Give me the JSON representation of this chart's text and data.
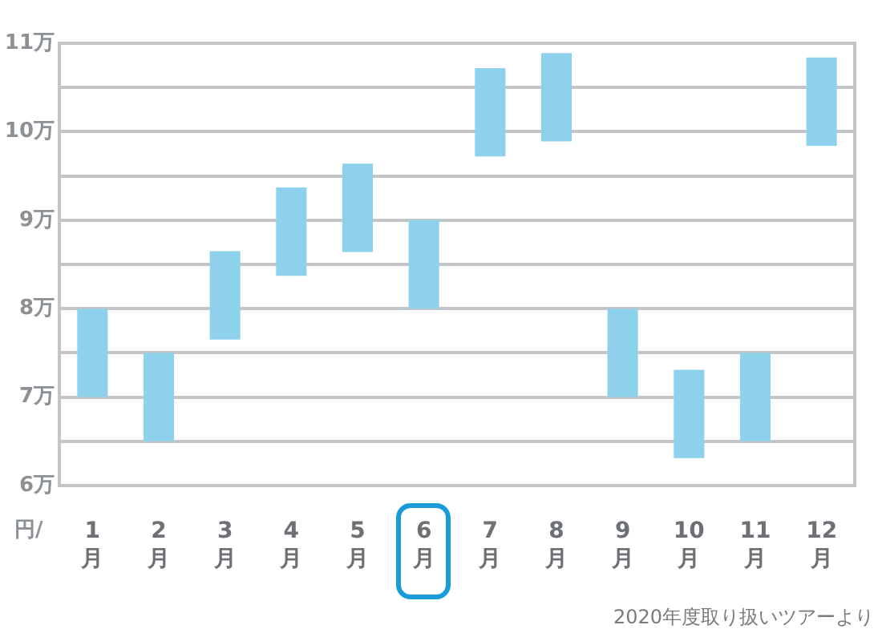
{
  "chart_data": {
    "type": "bar",
    "categories": [
      "1月",
      "2月",
      "3月",
      "4月",
      "5月",
      "6月",
      "7月",
      "8月",
      "9月",
      "10月",
      "11月",
      "12月"
    ],
    "base": [
      7,
      6.5,
      7.65,
      8.37,
      8.64,
      8,
      9.72,
      9.89,
      7,
      6.31,
      6.5,
      9.84
    ],
    "values": [
      1,
      1,
      1,
      1,
      1,
      1,
      1,
      1,
      1,
      1,
      1,
      1
    ],
    "color": "#8dd1ed",
    "ylim": [
      6,
      11
    ],
    "yticks": [
      {
        "value": 6,
        "label": "6万"
      },
      {
        "value": 6.5,
        "label": null
      },
      {
        "value": 7,
        "label": "7万"
      },
      {
        "value": 7.5,
        "label": null
      },
      {
        "value": 8,
        "label": "8万"
      },
      {
        "value": 8.5,
        "label": null
      },
      {
        "value": 9,
        "label": "9万"
      },
      {
        "value": 9.5,
        "label": null
      },
      {
        "value": 10,
        "label": "10万"
      },
      {
        "value": 10.5,
        "label": null
      },
      {
        "value": 11,
        "label": "11万"
      }
    ],
    "ylabel": "円/",
    "grid": "y",
    "annotations": [
      "2020年度取り扱いツアーより"
    ]
  }
}
